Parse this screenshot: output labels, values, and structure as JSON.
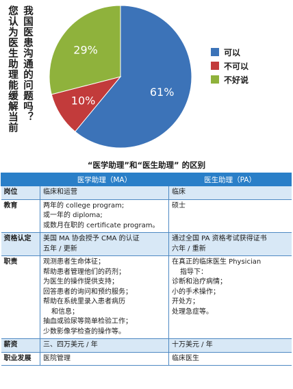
{
  "chart_data": {
    "type": "pie",
    "title_col_1": "您认为医生助理能缓解当前",
    "title_col_2": "我国医患沟通的问题吗？",
    "slices": [
      {
        "label": "可以",
        "value": 61,
        "display": "61%",
        "color": "#3c73b8"
      },
      {
        "label": "不可以",
        "value": 10,
        "display": "10%",
        "color": "#c23b3b"
      },
      {
        "label": "不好说",
        "value": 29,
        "display": "29%",
        "color": "#8fb23c"
      }
    ],
    "legend_position": "right"
  },
  "table": {
    "title": "“医学助理”和“医生助理” 的区别",
    "headers": [
      "",
      "医学助理（MA）",
      "医生助理（PA）"
    ],
    "rows": [
      {
        "head": "岗位",
        "ma": [
          "临床和运营"
        ],
        "pa": [
          "临床"
        ]
      },
      {
        "head": "教育",
        "ma": [
          "两年的 college program;",
          "或一年的 diploma;",
          "或数月在职的 certificate program。"
        ],
        "pa": [
          "硕士"
        ]
      },
      {
        "head": "资格认定",
        "ma": [
          "美国 MA 协会授予 CMA 的认证",
          "五年 / 更新"
        ],
        "pa": [
          "通过全国 PA 资格考试获得证书",
          "六年 / 重新"
        ]
      },
      {
        "head": "职责",
        "ma": [
          "观测患者生命体征；",
          "帮助患者管理他们的药剂；",
          "为医生的操作提供支持；",
          "回答患者的询问和预约服务；",
          "帮助在系统里录入患者病历",
          "和信息；",
          "抽血或验尿等简单检验工作；",
          "少数影像学检查的操作等。"
        ],
        "pa": [
          "在真正的临床医生 Physician",
          "指导下：",
          "诊断和治疗病情；",
          "小的手术操作；",
          "开处方；",
          "处理急症等。"
        ]
      },
      {
        "head": "薪资",
        "ma": [
          "三、四万美元 / 年"
        ],
        "pa": [
          "十万美元 / 年"
        ]
      },
      {
        "head": "职业发展",
        "ma": [
          "医院管理"
        ],
        "pa": [
          "临床医生"
        ]
      }
    ]
  }
}
